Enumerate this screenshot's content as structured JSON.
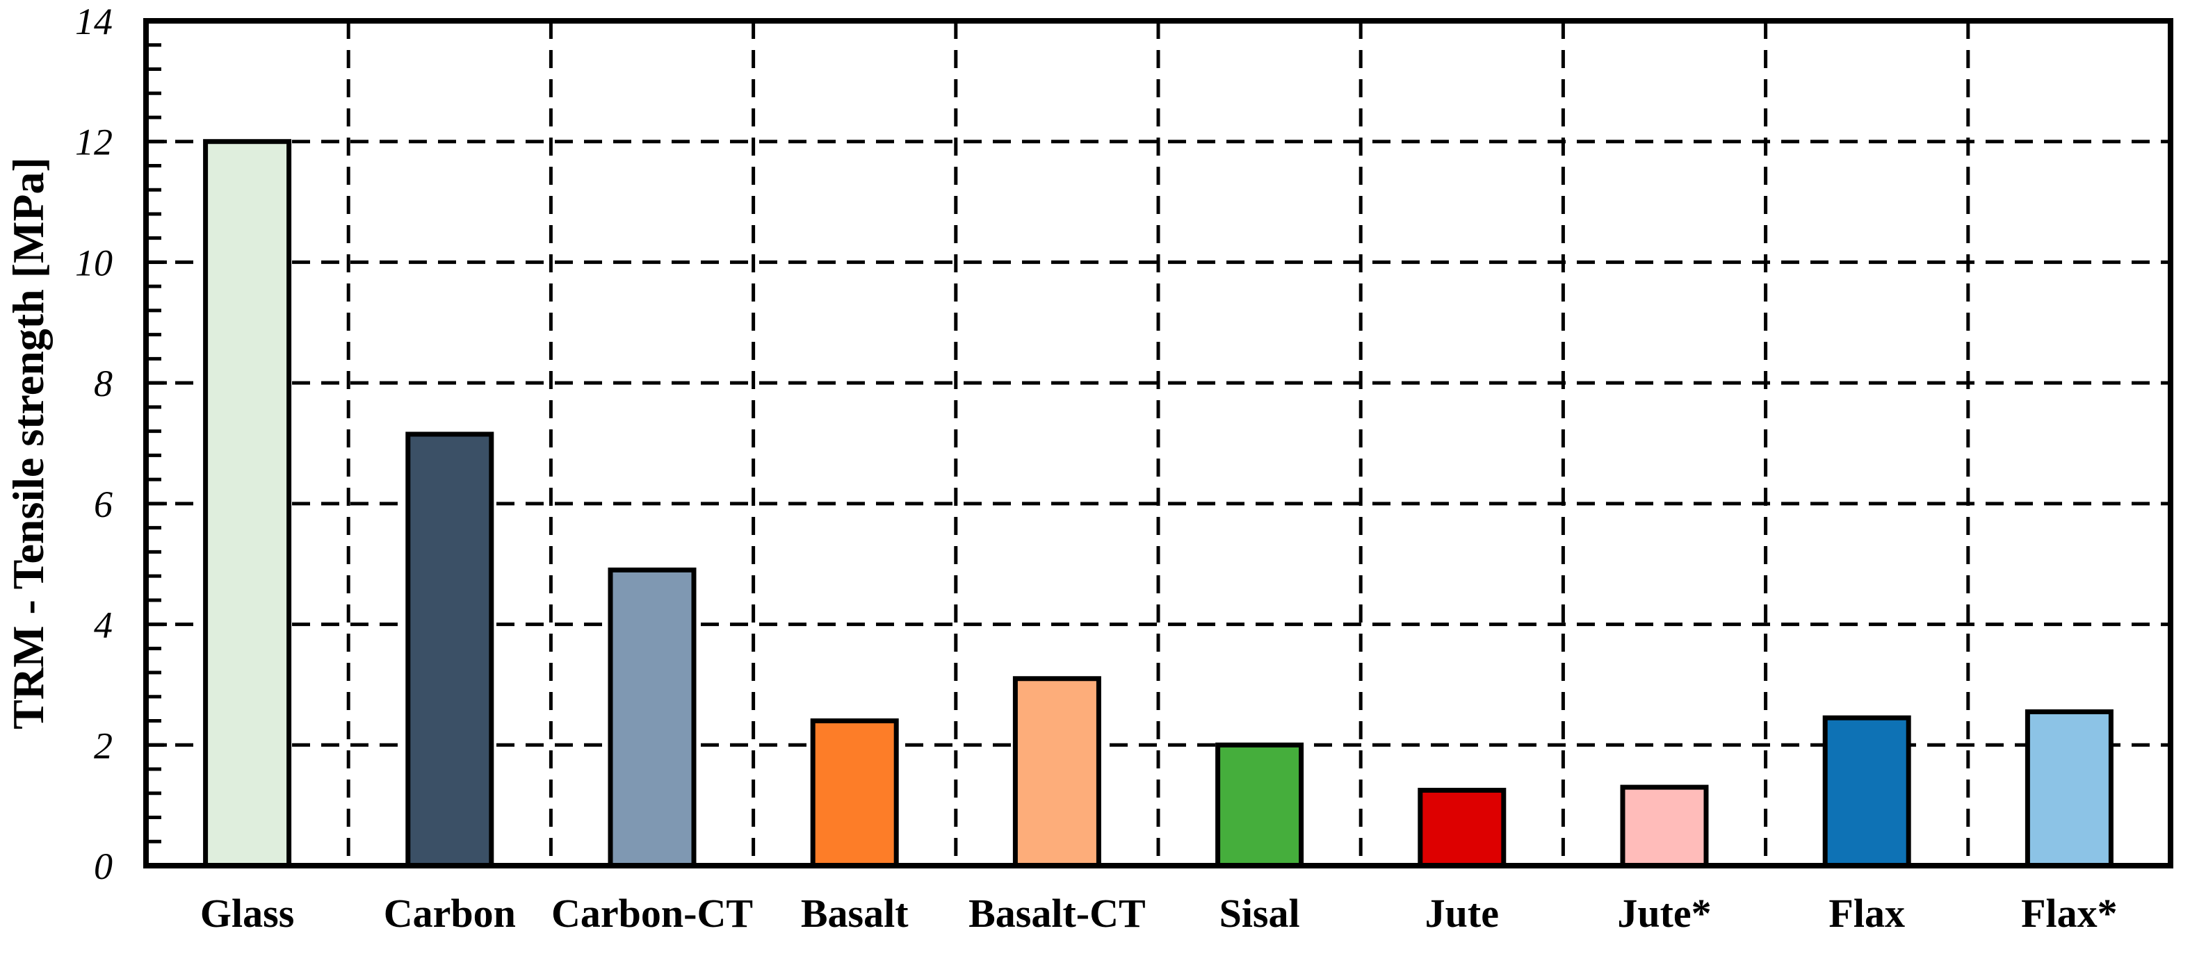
{
  "chart_data": {
    "type": "bar",
    "title": "",
    "xlabel": "",
    "ylabel": "TRM - Tensile strength [MPa]",
    "categories": [
      "Glass",
      "Carbon",
      "Carbon-CT",
      "Basalt",
      "Basalt-CT",
      "Sisal",
      "Jute",
      "Jute*",
      "Flax",
      "Flax*"
    ],
    "values": [
      12.0,
      7.15,
      4.9,
      2.4,
      3.1,
      2.0,
      1.25,
      1.3,
      2.45,
      2.55
    ],
    "bar_colors": [
      "#dfeedd",
      "#3b5066",
      "#7f98b2",
      "#fd7d28",
      "#fdad7a",
      "#45ae3c",
      "#dd0000",
      "#ffbcba",
      "#0e72b5",
      "#8cc3e6"
    ],
    "bar_border_color": "#000000",
    "axis_color": "#000000",
    "grid_color": "#000000",
    "ylim": [
      0,
      14
    ],
    "yticks": [
      0,
      2,
      4,
      6,
      8,
      10,
      12,
      14
    ],
    "minor_tick_step": 0.4,
    "grid": {
      "horizontal": "dashed at every major y tick",
      "vertical": "dashed at every category boundary",
      "style": "dashed"
    },
    "legend": "none",
    "plot_border": "solid black rectangle on all four sides"
  }
}
